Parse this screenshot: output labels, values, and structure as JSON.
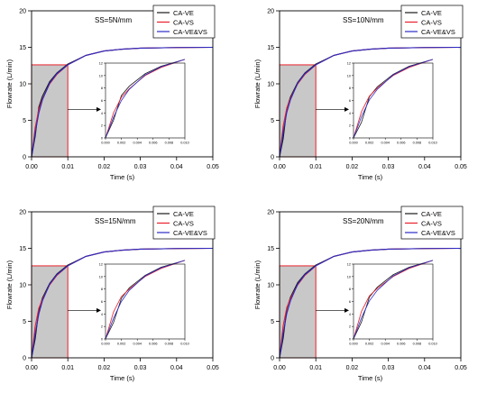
{
  "colors": {
    "CA-VE": "#1a1a1a",
    "CA-VS": "#e8202a",
    "CA-VE&VS": "#2c2cc8",
    "shade_fill": "#c8c8c8",
    "shade_edge": "#e8202a"
  },
  "chart_data": [
    {
      "type": "line",
      "annotation": "SS=5N/mm",
      "xlabel": "Time (s)",
      "ylabel": "Flowrate (L/min)",
      "xlim": [
        0,
        0.05
      ],
      "ylim": [
        0,
        20
      ],
      "x_ticks": [
        "0.00",
        "0.01",
        "0.02",
        "0.03",
        "0.04",
        "0.05"
      ],
      "y_ticks": [
        "0",
        "5",
        "10",
        "15",
        "20"
      ],
      "legend": [
        "CA-VE",
        "CA-VS",
        "CA-VE&VS"
      ],
      "legend_position": "top-right",
      "shaded_region": {
        "x": [
          0,
          0.01
        ],
        "y": [
          0,
          12.6
        ]
      },
      "series": [
        {
          "name": "CA-VE",
          "x": [
            0,
            0.001,
            0.002,
            0.003,
            0.005,
            0.007,
            0.01,
            0.015,
            0.02,
            0.025,
            0.03,
            0.04,
            0.05
          ],
          "y": [
            0,
            2.8,
            6.8,
            8.3,
            10.3,
            11.5,
            12.7,
            13.9,
            14.5,
            14.75,
            14.88,
            14.97,
            15.0
          ]
        },
        {
          "name": "CA-VS",
          "x": [
            0,
            0.001,
            0.002,
            0.003,
            0.005,
            0.007,
            0.01,
            0.015,
            0.02,
            0.025,
            0.03,
            0.04,
            0.05
          ],
          "y": [
            0,
            4.0,
            6.5,
            7.9,
            10.0,
            11.3,
            12.6,
            13.9,
            14.5,
            14.75,
            14.88,
            14.97,
            15.0
          ]
        },
        {
          "name": "CA-VE&VS",
          "x": [
            0,
            0.001,
            0.002,
            0.003,
            0.005,
            0.007,
            0.01,
            0.015,
            0.02,
            0.025,
            0.03,
            0.04,
            0.05
          ],
          "y": [
            0,
            3.3,
            6.0,
            7.8,
            10.1,
            11.4,
            12.6,
            13.9,
            14.5,
            14.75,
            14.88,
            14.97,
            15.0
          ]
        }
      ],
      "inset": {
        "xlim": [
          0,
          0.01
        ],
        "ylim": [
          0,
          12
        ],
        "x_ticks": [
          "0.000",
          "0.002",
          "0.004",
          "0.006",
          "0.008",
          "0.010"
        ],
        "y_ticks": [
          "0",
          "2",
          "4",
          "6",
          "8",
          "10",
          "12"
        ]
      }
    },
    {
      "type": "line",
      "annotation": "SS=10N/mm",
      "xlabel": "Time (s)",
      "ylabel": "Flowrate (L/min)",
      "xlim": [
        0,
        0.05
      ],
      "ylim": [
        0,
        20
      ],
      "x_ticks": [
        "0.00",
        "0.01",
        "0.02",
        "0.03",
        "0.04",
        "0.05"
      ],
      "y_ticks": [
        "0",
        "5",
        "10",
        "15",
        "20"
      ],
      "legend": [
        "CA-VE",
        "CA-VS",
        "CA-VE&VS"
      ],
      "legend_position": "top-right",
      "shaded_region": {
        "x": [
          0,
          0.01
        ],
        "y": [
          0,
          12.6
        ]
      },
      "series": [
        {
          "name": "CA-VE",
          "x": [
            0,
            0.001,
            0.002,
            0.003,
            0.005,
            0.007,
            0.01,
            0.015,
            0.02,
            0.025,
            0.03,
            0.04,
            0.05
          ],
          "y": [
            0,
            2.5,
            6.6,
            8.2,
            10.2,
            11.5,
            12.7,
            13.9,
            14.5,
            14.75,
            14.88,
            14.97,
            15.0
          ]
        },
        {
          "name": "CA-VS",
          "x": [
            0,
            0.001,
            0.002,
            0.003,
            0.005,
            0.007,
            0.01,
            0.015,
            0.02,
            0.025,
            0.03,
            0.04,
            0.05
          ],
          "y": [
            0,
            4.2,
            6.7,
            8.0,
            10.0,
            11.3,
            12.6,
            13.9,
            14.5,
            14.75,
            14.88,
            14.97,
            15.0
          ]
        },
        {
          "name": "CA-VE&VS",
          "x": [
            0,
            0.001,
            0.002,
            0.003,
            0.005,
            0.007,
            0.01,
            0.015,
            0.02,
            0.025,
            0.03,
            0.04,
            0.05
          ],
          "y": [
            0,
            3.4,
            6.1,
            7.8,
            10.1,
            11.4,
            12.6,
            13.9,
            14.5,
            14.75,
            14.88,
            14.97,
            15.0
          ]
        }
      ],
      "inset": {
        "xlim": [
          0,
          0.01
        ],
        "ylim": [
          0,
          12
        ],
        "x_ticks": [
          "0.000",
          "0.002",
          "0.004",
          "0.006",
          "0.008",
          "0.010"
        ],
        "y_ticks": [
          "0",
          "2",
          "4",
          "6",
          "8",
          "10",
          "12"
        ]
      }
    },
    {
      "type": "line",
      "annotation": "SS=15N/mm",
      "xlabel": "Time (s)",
      "ylabel": "Flowrate (L/min)",
      "xlim": [
        0,
        0.05
      ],
      "ylim": [
        0,
        20
      ],
      "x_ticks": [
        "0.00",
        "0.01",
        "0.02",
        "0.03",
        "0.04",
        "0.05"
      ],
      "y_ticks": [
        "0",
        "5",
        "10",
        "15",
        "20"
      ],
      "legend": [
        "CA-VE",
        "CA-VS",
        "CA-VE&VS"
      ],
      "legend_position": "top-right",
      "shaded_region": {
        "x": [
          0,
          0.01
        ],
        "y": [
          0,
          12.6
        ]
      },
      "series": [
        {
          "name": "CA-VE",
          "x": [
            0,
            0.001,
            0.002,
            0.003,
            0.005,
            0.007,
            0.01,
            0.015,
            0.02,
            0.025,
            0.03,
            0.04,
            0.05
          ],
          "y": [
            0,
            2.6,
            6.5,
            8.2,
            10.2,
            11.5,
            12.7,
            13.9,
            14.5,
            14.75,
            14.88,
            14.97,
            15.0
          ]
        },
        {
          "name": "CA-VS",
          "x": [
            0,
            0.001,
            0.002,
            0.003,
            0.005,
            0.007,
            0.01,
            0.015,
            0.02,
            0.025,
            0.03,
            0.04,
            0.05
          ],
          "y": [
            0,
            4.3,
            6.8,
            8.0,
            10.0,
            11.3,
            12.6,
            13.9,
            14.5,
            14.75,
            14.88,
            14.97,
            15.0
          ]
        },
        {
          "name": "CA-VE&VS",
          "x": [
            0,
            0.001,
            0.002,
            0.003,
            0.005,
            0.007,
            0.01,
            0.015,
            0.02,
            0.025,
            0.03,
            0.04,
            0.05
          ],
          "y": [
            0,
            3.3,
            6.0,
            7.8,
            10.1,
            11.4,
            12.6,
            13.9,
            14.5,
            14.75,
            14.88,
            14.97,
            15.0
          ]
        }
      ],
      "inset": {
        "xlim": [
          0,
          0.01
        ],
        "ylim": [
          0,
          12
        ],
        "x_ticks": [
          "0.000",
          "0.002",
          "0.004",
          "0.006",
          "0.008",
          "0.010"
        ],
        "y_ticks": [
          "0",
          "2",
          "4",
          "6",
          "8",
          "10",
          "12"
        ]
      }
    },
    {
      "type": "line",
      "annotation": "SS=20N/mm",
      "xlabel": "Time (s)",
      "ylabel": "Flowrate (L/min)",
      "xlim": [
        0,
        0.05
      ],
      "ylim": [
        0,
        20
      ],
      "x_ticks": [
        "0.00",
        "0.01",
        "0.02",
        "0.03",
        "0.04",
        "0.05"
      ],
      "y_ticks": [
        "0",
        "5",
        "10",
        "15",
        "20"
      ],
      "legend": [
        "CA-VE",
        "CA-VS",
        "CA-VE&VS"
      ],
      "legend_position": "top-right",
      "shaded_region": {
        "x": [
          0,
          0.01
        ],
        "y": [
          0,
          12.6
        ]
      },
      "series": [
        {
          "name": "CA-VE",
          "x": [
            0,
            0.001,
            0.002,
            0.003,
            0.005,
            0.007,
            0.01,
            0.015,
            0.02,
            0.025,
            0.03,
            0.04,
            0.05
          ],
          "y": [
            0,
            2.7,
            6.7,
            8.3,
            10.3,
            11.5,
            12.7,
            13.9,
            14.5,
            14.75,
            14.88,
            14.97,
            15.0
          ]
        },
        {
          "name": "CA-VS",
          "x": [
            0,
            0.001,
            0.002,
            0.003,
            0.005,
            0.007,
            0.01,
            0.015,
            0.02,
            0.025,
            0.03,
            0.04,
            0.05
          ],
          "y": [
            0,
            4.4,
            6.9,
            8.1,
            10.0,
            11.3,
            12.6,
            13.9,
            14.5,
            14.75,
            14.88,
            14.97,
            15.0
          ]
        },
        {
          "name": "CA-VE&VS",
          "x": [
            0,
            0.001,
            0.002,
            0.003,
            0.005,
            0.007,
            0.01,
            0.015,
            0.02,
            0.025,
            0.03,
            0.04,
            0.05
          ],
          "y": [
            0,
            3.4,
            6.1,
            7.8,
            10.1,
            11.4,
            12.6,
            13.9,
            14.5,
            14.75,
            14.88,
            14.97,
            15.0
          ]
        }
      ],
      "inset": {
        "xlim": [
          0,
          0.01
        ],
        "ylim": [
          0,
          12
        ],
        "x_ticks": [
          "0.000",
          "0.002",
          "0.004",
          "0.006",
          "0.008",
          "0.010"
        ],
        "y_ticks": [
          "0",
          "2",
          "4",
          "6",
          "8",
          "10",
          "12"
        ]
      }
    }
  ]
}
